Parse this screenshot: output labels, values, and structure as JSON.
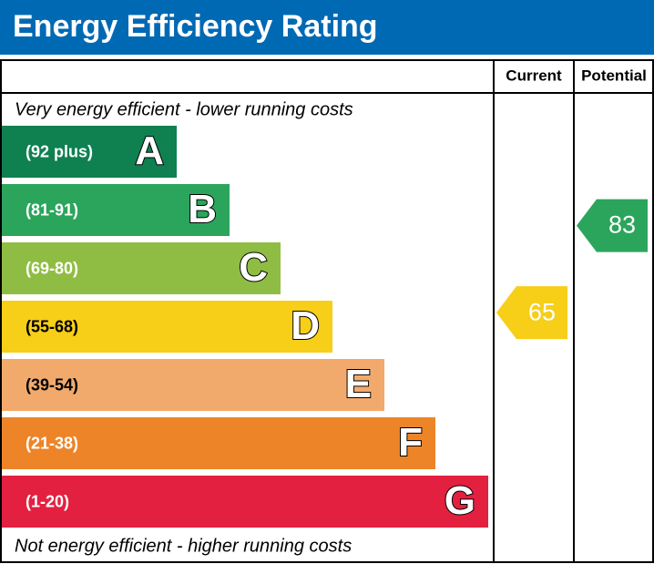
{
  "header": {
    "title": "Energy Efficiency Rating"
  },
  "columns": {
    "current": "Current",
    "potential": "Potential"
  },
  "top_note": "Very energy efficient - lower running costs",
  "bottom_note": "Not energy efficient - higher running costs",
  "bands": [
    {
      "range": "(92 plus)",
      "letter": "A",
      "color": "#0f8050"
    },
    {
      "range": "(81-91)",
      "letter": "B",
      "color": "#2ba55b"
    },
    {
      "range": "(69-80)",
      "letter": "C",
      "color": "#8fbd44"
    },
    {
      "range": "(55-68)",
      "letter": "D",
      "color": "#f7ce18"
    },
    {
      "range": "(39-54)",
      "letter": "E",
      "color": "#f2aa6c"
    },
    {
      "range": "(21-38)",
      "letter": "F",
      "color": "#ed8428"
    },
    {
      "range": "(1-20)",
      "letter": "G",
      "color": "#e3203f"
    }
  ],
  "current": {
    "value": 65,
    "color": "#f7ce18"
  },
  "potential": {
    "value": 83,
    "color": "#2ba55b"
  }
}
